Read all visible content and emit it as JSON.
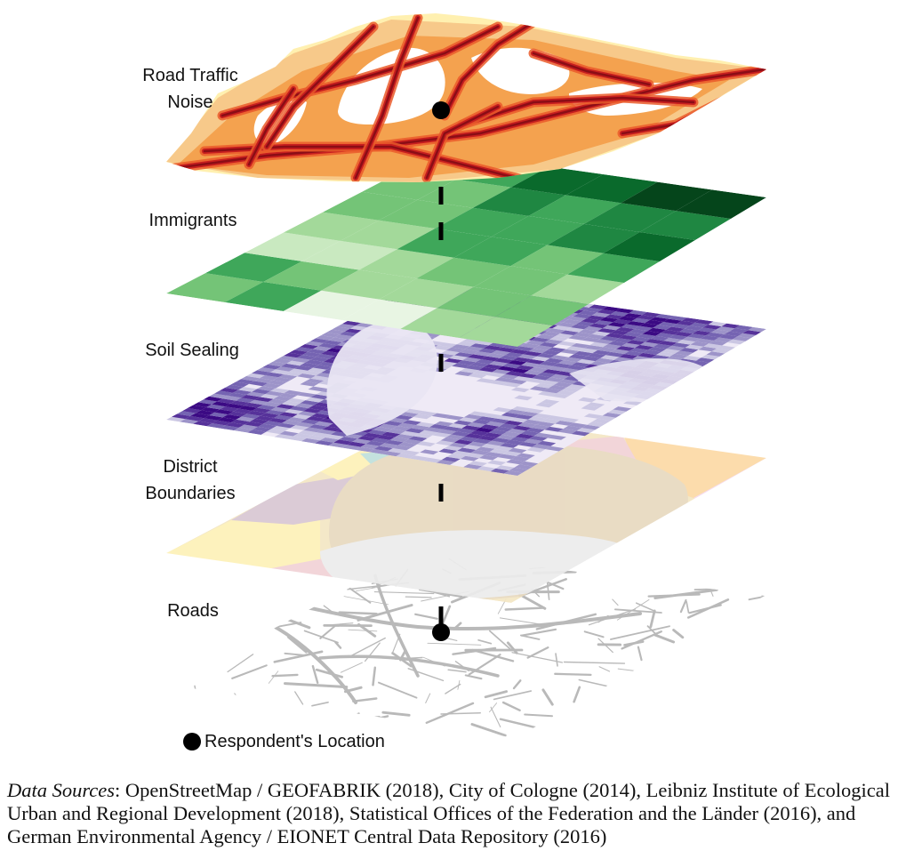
{
  "layers": [
    {
      "id": "noise",
      "label_lines": [
        "Road Traffic",
        "Noise"
      ]
    },
    {
      "id": "immigrants",
      "label_lines": [
        "Immigrants"
      ]
    },
    {
      "id": "soil",
      "label_lines": [
        "Soil Sealing"
      ]
    },
    {
      "id": "districts",
      "label_lines": [
        "District",
        "Boundaries"
      ]
    },
    {
      "id": "roads",
      "label_lines": [
        "Roads"
      ]
    }
  ],
  "legend": {
    "label": "Respondent's Location"
  },
  "caption": {
    "lead": "Data Sources",
    "text": ": OpenStreetMap / GEOFABRIK (2018), City of Cologne (2014), Leibniz Institute of Ecological Urban and Regional Development (2018), Statistical Offices of the Federation and the Länder (2016), and German Environmental Agency / EIONET Central Data Repository (2016)"
  },
  "colors": {
    "noise": [
      "#fff0b0",
      "#f7c98a",
      "#f4a24f",
      "#ea5a2a",
      "#c71f1f",
      "#8b0d16"
    ],
    "immigrants": [
      "#e8f5e3",
      "#c9e9c0",
      "#a3d99a",
      "#74c477",
      "#3fa75a",
      "#1f8742",
      "#0a6a2c",
      "#05451b"
    ],
    "soil": [
      "#f1eef8",
      "#cbc7e3",
      "#9d94c9",
      "#7564b2",
      "#56329a",
      "#3b0a84"
    ],
    "districts": [
      "#fdf1b8",
      "#d8c7d3",
      "#e7d7b8",
      "#f1d2d6",
      "#fcd9a5",
      "#f6d9ec",
      "#e8e8e8",
      "#bfe0dc"
    ],
    "roads": "#b9b9b9",
    "marker": "#000000"
  }
}
